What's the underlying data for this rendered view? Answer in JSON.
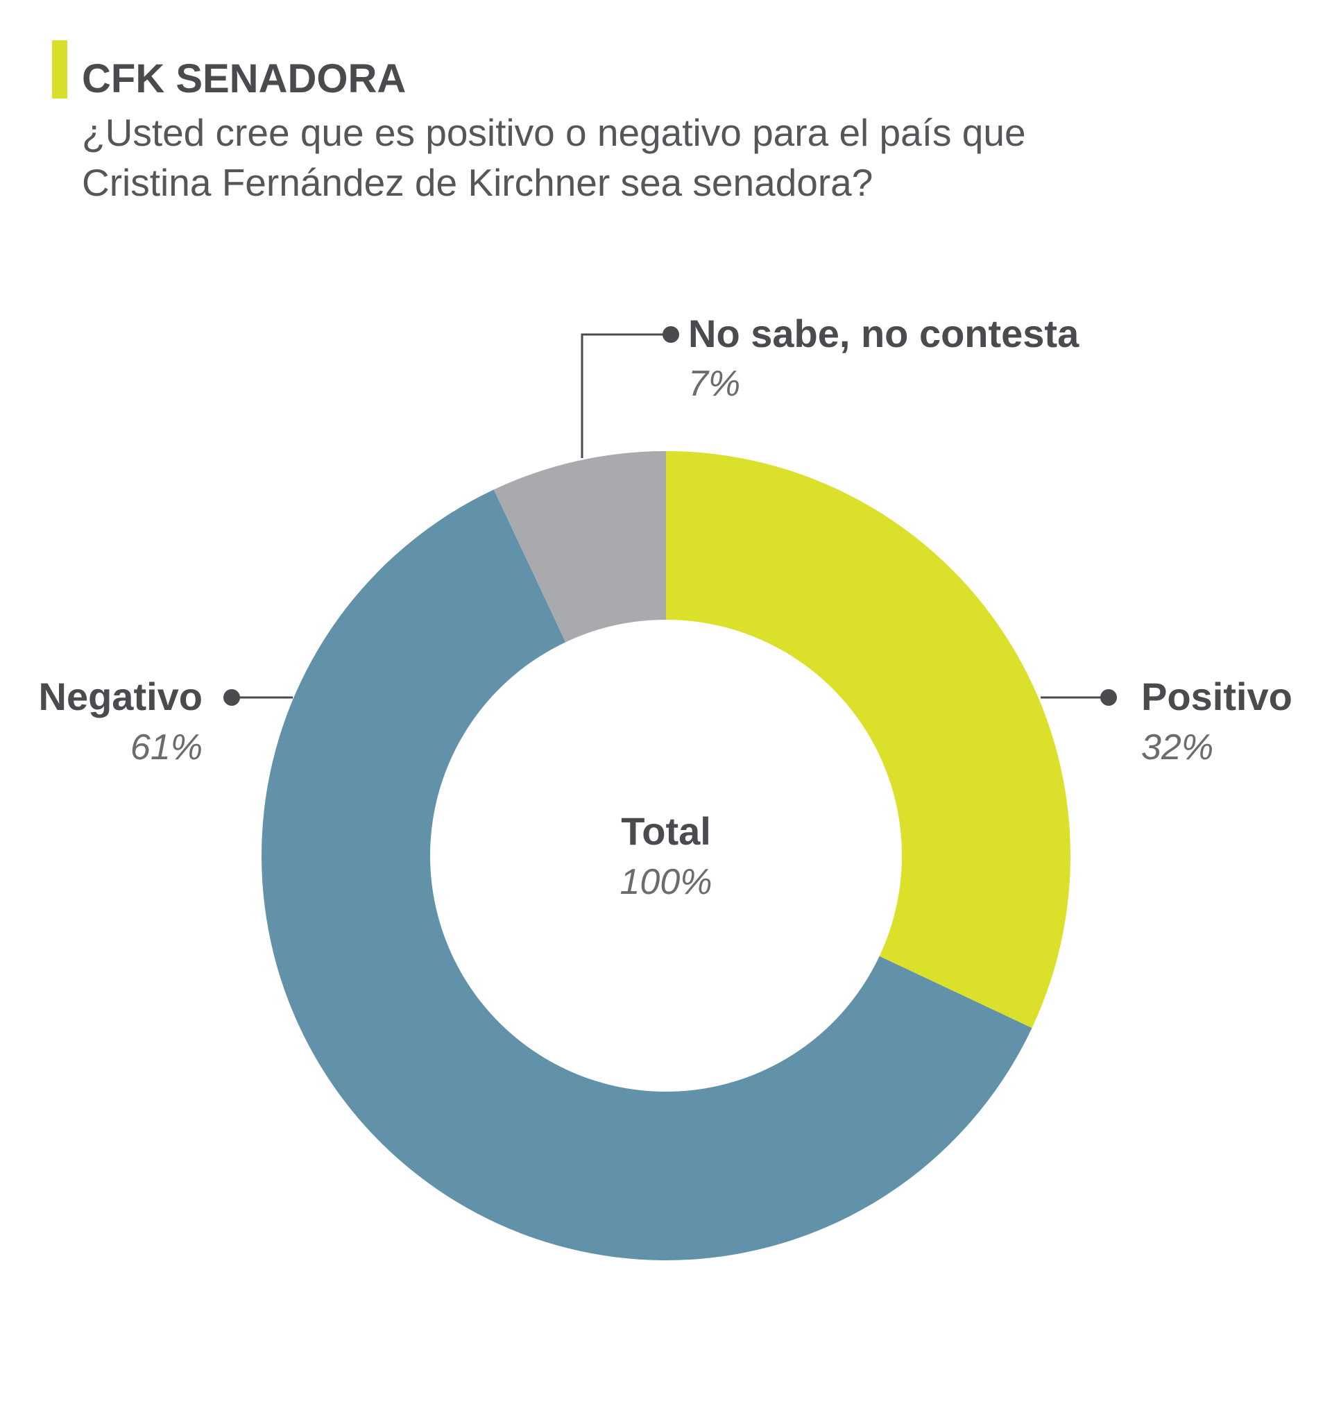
{
  "title": "CFK SENADORA",
  "subtitle_lines": [
    "¿Usted cree que es positivo o negativo para el país que",
    "Cristina Fernández de Kirchner sea senadora?"
  ],
  "colors": {
    "accent": "#d8df2a",
    "positivo": "#dbe02a",
    "negativo": "#6292aa",
    "nsnc": "#a9aaad",
    "text_dark": "#4a4a4f",
    "leader": "#4a4a4f"
  },
  "chart_data": {
    "type": "pie",
    "variant": "donut",
    "start": "top",
    "direction": "clockwise",
    "center_label": "Total",
    "center_value": "100%",
    "slices": [
      {
        "name": "Positivo",
        "value": 32,
        "value_label": "32%",
        "color": "#dbe02a"
      },
      {
        "name": "Negativo",
        "value": 61,
        "value_label": "61%",
        "color": "#6292aa"
      },
      {
        "name": "No sabe, no contesta",
        "value": 7,
        "value_label": "7%",
        "color": "#a9aaad"
      }
    ]
  }
}
